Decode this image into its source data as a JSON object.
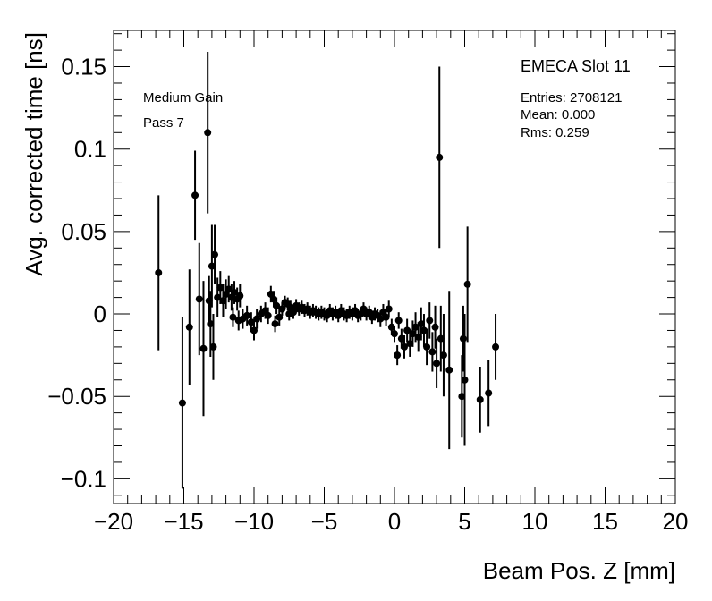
{
  "annotations": {
    "title": "EMECA Slot 11",
    "line1": "Medium Gain",
    "line2": "Pass 7",
    "stats_entries": "Entries: 2708121",
    "stats_mean": "Mean: 0.000",
    "stats_rms": "Rms: 0.259"
  },
  "chart_data": {
    "type": "scatter",
    "title": "EMECA Slot 11",
    "xlabel": "Beam Pos. Z [mm]",
    "ylabel": "Avg. corrected time [ns]",
    "xlim": [
      -20,
      20
    ],
    "ylim": [
      -0.115,
      0.172
    ],
    "x_ticks": [
      -20,
      -15,
      -10,
      -5,
      0,
      5,
      10,
      15,
      20
    ],
    "x_tick_labels": [
      "−20",
      "−15",
      "−10",
      "−5",
      "0",
      "5",
      "10",
      "15",
      "20"
    ],
    "y_ticks": [
      -0.1,
      -0.05,
      0,
      0.05,
      0.1,
      0.15
    ],
    "y_tick_labels": [
      "−0.1",
      "−0.05",
      "0",
      "0.05",
      "0.1",
      "0.15"
    ],
    "grid": false,
    "error_bars": true,
    "marker_color": "#000000",
    "points": [
      {
        "x": -16.8,
        "y": 0.025,
        "err": 0.047
      },
      {
        "x": -15.1,
        "y": -0.054,
        "err": 0.052
      },
      {
        "x": -14.6,
        "y": -0.008,
        "err": 0.035
      },
      {
        "x": -14.2,
        "y": 0.072,
        "err": 0.027
      },
      {
        "x": -13.9,
        "y": 0.009,
        "err": 0.034
      },
      {
        "x": -13.6,
        "y": -0.021,
        "err": 0.041
      },
      {
        "x": -13.3,
        "y": 0.11,
        "err": 0.049
      },
      {
        "x": -13.1,
        "y": -0.006,
        "err": 0.02
      },
      {
        "x": -13.0,
        "y": 0.029,
        "err": 0.025
      },
      {
        "x": -12.8,
        "y": 0.036,
        "err": 0.018
      },
      {
        "x": -12.9,
        "y": -0.02,
        "err": 0.02
      },
      {
        "x": -13.2,
        "y": 0.008,
        "err": 0.015
      },
      {
        "x": -12.6,
        "y": 0.01,
        "err": 0.012
      },
      {
        "x": -12.4,
        "y": 0.016,
        "err": 0.01
      },
      {
        "x": -12.2,
        "y": 0.008,
        "err": 0.01
      },
      {
        "x": -12.0,
        "y": 0.012,
        "err": 0.009
      },
      {
        "x": -11.8,
        "y": 0.015,
        "err": 0.008
      },
      {
        "x": -11.6,
        "y": 0.01,
        "err": 0.008
      },
      {
        "x": -11.4,
        "y": 0.013,
        "err": 0.007
      },
      {
        "x": -11.2,
        "y": 0.009,
        "err": 0.007
      },
      {
        "x": -11.0,
        "y": 0.011,
        "err": 0.007
      },
      {
        "x": -11.5,
        "y": -0.002,
        "err": 0.006
      },
      {
        "x": -11.1,
        "y": -0.004,
        "err": 0.006
      },
      {
        "x": -10.8,
        "y": -0.003,
        "err": 0.006
      },
      {
        "x": -10.5,
        "y": -0.001,
        "err": 0.006
      },
      {
        "x": -10.2,
        "y": -0.005,
        "err": 0.006
      },
      {
        "x": -10.0,
        "y": -0.01,
        "err": 0.006
      },
      {
        "x": -9.8,
        "y": -0.003,
        "err": 0.006
      },
      {
        "x": -9.5,
        "y": 0.0,
        "err": 0.005
      },
      {
        "x": -9.2,
        "y": 0.002,
        "err": 0.005
      },
      {
        "x": -9.0,
        "y": -0.001,
        "err": 0.005
      },
      {
        "x": -8.8,
        "y": 0.012,
        "err": 0.005
      },
      {
        "x": -8.6,
        "y": 0.009,
        "err": 0.005
      },
      {
        "x": -8.4,
        "y": 0.005,
        "err": 0.005
      },
      {
        "x": -8.5,
        "y": -0.006,
        "err": 0.005
      },
      {
        "x": -8.2,
        "y": -0.002,
        "err": 0.005
      },
      {
        "x": -8.0,
        "y": 0.003,
        "err": 0.004
      },
      {
        "x": -7.8,
        "y": 0.007,
        "err": 0.004
      },
      {
        "x": -7.6,
        "y": 0.006,
        "err": 0.004
      },
      {
        "x": -7.4,
        "y": 0.004,
        "err": 0.004
      },
      {
        "x": -7.5,
        "y": 0.0,
        "err": 0.004
      },
      {
        "x": -7.2,
        "y": 0.001,
        "err": 0.004
      },
      {
        "x": -7.0,
        "y": 0.005,
        "err": 0.004
      },
      {
        "x": -6.8,
        "y": 0.003,
        "err": 0.004
      },
      {
        "x": -6.6,
        "y": 0.004,
        "err": 0.004
      },
      {
        "x": -6.4,
        "y": 0.002,
        "err": 0.004
      },
      {
        "x": -6.2,
        "y": 0.003,
        "err": 0.004
      },
      {
        "x": -6.0,
        "y": 0.001,
        "err": 0.004
      },
      {
        "x": -5.8,
        "y": 0.002,
        "err": 0.004
      },
      {
        "x": -5.6,
        "y": 0.001,
        "err": 0.004
      },
      {
        "x": -5.4,
        "y": 0.0,
        "err": 0.004
      },
      {
        "x": -5.2,
        "y": 0.001,
        "err": 0.004
      },
      {
        "x": -5.0,
        "y": 0.0,
        "err": 0.004
      },
      {
        "x": -4.8,
        "y": -0.001,
        "err": 0.004
      },
      {
        "x": -4.6,
        "y": 0.002,
        "err": 0.004
      },
      {
        "x": -4.4,
        "y": 0.0,
        "err": 0.004
      },
      {
        "x": -4.2,
        "y": 0.001,
        "err": 0.004
      },
      {
        "x": -4.0,
        "y": -0.001,
        "err": 0.004
      },
      {
        "x": -3.8,
        "y": 0.002,
        "err": 0.004
      },
      {
        "x": -3.6,
        "y": 0.0,
        "err": 0.004
      },
      {
        "x": -3.4,
        "y": -0.001,
        "err": 0.004
      },
      {
        "x": -3.2,
        "y": 0.001,
        "err": 0.004
      },
      {
        "x": -3.0,
        "y": 0.0,
        "err": 0.004
      },
      {
        "x": -2.8,
        "y": 0.002,
        "err": 0.004
      },
      {
        "x": -2.6,
        "y": -0.001,
        "err": 0.004
      },
      {
        "x": -2.4,
        "y": 0.0,
        "err": 0.004
      },
      {
        "x": -2.2,
        "y": 0.003,
        "err": 0.004
      },
      {
        "x": -2.0,
        "y": 0.0,
        "err": 0.004
      },
      {
        "x": -1.8,
        "y": 0.001,
        "err": 0.004
      },
      {
        "x": -1.6,
        "y": -0.002,
        "err": 0.004
      },
      {
        "x": -1.4,
        "y": 0.0,
        "err": 0.004
      },
      {
        "x": -1.2,
        "y": -0.001,
        "err": 0.004
      },
      {
        "x": -1.0,
        "y": -0.003,
        "err": 0.005
      },
      {
        "x": -0.8,
        "y": 0.001,
        "err": 0.005
      },
      {
        "x": -0.6,
        "y": -0.002,
        "err": 0.005
      },
      {
        "x": -0.4,
        "y": 0.003,
        "err": 0.005
      },
      {
        "x": -0.2,
        "y": -0.008,
        "err": 0.005
      },
      {
        "x": 0.0,
        "y": -0.012,
        "err": 0.005
      },
      {
        "x": 0.2,
        "y": -0.025,
        "err": 0.006
      },
      {
        "x": 0.3,
        "y": -0.004,
        "err": 0.005
      },
      {
        "x": 0.5,
        "y": -0.015,
        "err": 0.006
      },
      {
        "x": 0.7,
        "y": -0.02,
        "err": 0.007
      },
      {
        "x": 0.9,
        "y": -0.01,
        "err": 0.007
      },
      {
        "x": 1.1,
        "y": -0.018,
        "err": 0.008
      },
      {
        "x": 1.3,
        "y": -0.012,
        "err": 0.008
      },
      {
        "x": 1.5,
        "y": -0.008,
        "err": 0.009
      },
      {
        "x": 1.7,
        "y": -0.014,
        "err": 0.009
      },
      {
        "x": 1.9,
        "y": -0.006,
        "err": 0.01
      },
      {
        "x": 2.1,
        "y": -0.01,
        "err": 0.01
      },
      {
        "x": 2.3,
        "y": -0.02,
        "err": 0.011
      },
      {
        "x": 2.5,
        "y": -0.004,
        "err": 0.011
      },
      {
        "x": 2.7,
        "y": -0.023,
        "err": 0.012
      },
      {
        "x": 2.9,
        "y": -0.008,
        "err": 0.013
      },
      {
        "x": 3.0,
        "y": -0.03,
        "err": 0.015
      },
      {
        "x": 3.2,
        "y": 0.095,
        "err": 0.055
      },
      {
        "x": 3.3,
        "y": -0.015,
        "err": 0.02
      },
      {
        "x": 3.5,
        "y": -0.025,
        "err": 0.025
      },
      {
        "x": 3.9,
        "y": -0.034,
        "err": 0.048
      },
      {
        "x": 4.8,
        "y": -0.05,
        "err": 0.025
      },
      {
        "x": 4.9,
        "y": -0.015,
        "err": 0.02
      },
      {
        "x": 5.0,
        "y": -0.04,
        "err": 0.04
      },
      {
        "x": 5.2,
        "y": 0.018,
        "err": 0.035
      },
      {
        "x": 6.1,
        "y": -0.052,
        "err": 0.02
      },
      {
        "x": 6.7,
        "y": -0.048,
        "err": 0.02
      },
      {
        "x": 7.2,
        "y": -0.02,
        "err": 0.02
      }
    ]
  }
}
